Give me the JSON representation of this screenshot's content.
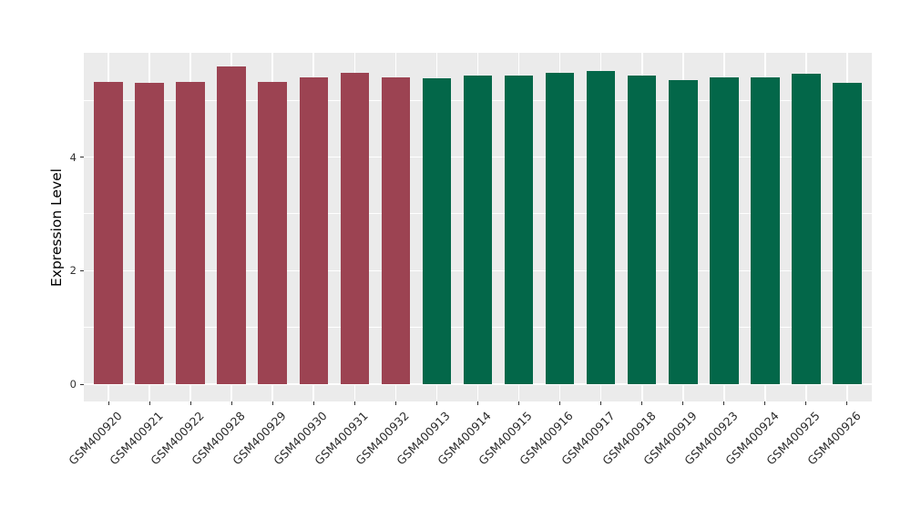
{
  "chart_data": {
    "type": "bar",
    "title": "",
    "xlabel": "",
    "ylabel": "Expression Level",
    "categories": [
      "GSM400920",
      "GSM400921",
      "GSM400922",
      "GSM400928",
      "GSM400929",
      "GSM400930",
      "GSM400931",
      "GSM400932",
      "GSM400913",
      "GSM400914",
      "GSM400915",
      "GSM400916",
      "GSM400917",
      "GSM400918",
      "GSM400919",
      "GSM400923",
      "GSM400924",
      "GSM400925",
      "GSM400926"
    ],
    "values": [
      5.32,
      5.31,
      5.32,
      5.59,
      5.33,
      5.41,
      5.48,
      5.41,
      5.39,
      5.43,
      5.43,
      5.48,
      5.51,
      5.43,
      5.36,
      5.41,
      5.4,
      5.47,
      5.31
    ],
    "bar_colors": [
      "#9C4352",
      "#9C4352",
      "#9C4352",
      "#9C4352",
      "#9C4352",
      "#9C4352",
      "#9C4352",
      "#9C4352",
      "#036749",
      "#036749",
      "#036749",
      "#036749",
      "#036749",
      "#036749",
      "#036749",
      "#036749",
      "#036749",
      "#036749",
      "#036749"
    ],
    "y_ticks": [
      0,
      2,
      4
    ],
    "y_minor_ticks": [
      1,
      3,
      5
    ],
    "ylim": [
      0,
      5.84
    ],
    "grid": true,
    "legend": "none",
    "figure_background": "#FFFFFF",
    "panel_background": "#EBEBEB",
    "grid_color": "#FFFFFF",
    "tick_mark_color": "#333333",
    "tick_label_color": "#333333",
    "axis_title_color": "#000000"
  }
}
